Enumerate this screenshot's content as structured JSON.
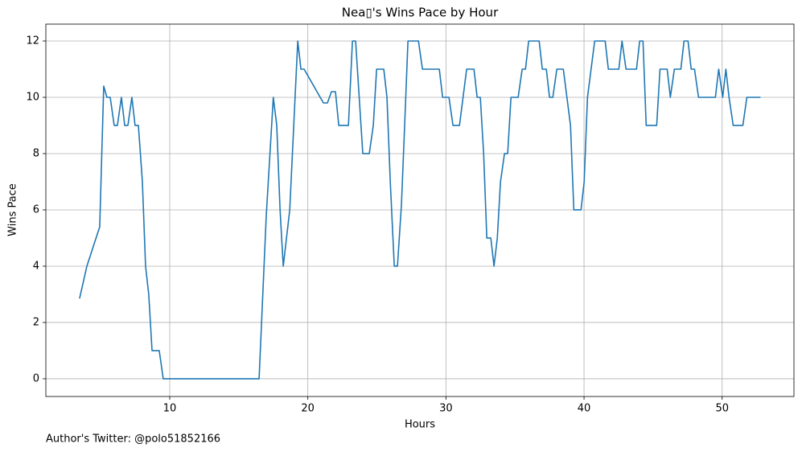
{
  "chart_data": {
    "type": "line",
    "title": "Nea▯'s Wins Pace by Hour",
    "x_label": "Hours",
    "y_label": "Wins Pace",
    "annotation": "Author's Twitter: @polo51852166",
    "x": [
      3.47,
      4.0,
      4.93,
      5.22,
      5.45,
      5.69,
      5.98,
      6.21,
      6.5,
      6.74,
      6.97,
      7.26,
      7.49,
      7.73,
      8.02,
      8.25,
      8.48,
      8.72,
      9.24,
      9.53,
      16.47,
      16.99,
      17.5,
      17.75,
      17.99,
      18.22,
      18.69,
      19.27,
      19.5,
      19.73,
      21.13,
      21.42,
      21.71,
      22.0,
      22.24,
      22.94,
      23.23,
      23.46,
      23.98,
      24.45,
      24.74,
      24.98,
      25.5,
      25.73,
      25.97,
      26.26,
      26.49,
      26.78,
      27.01,
      27.25,
      28.01,
      28.3,
      29.52,
      29.76,
      30.22,
      30.51,
      30.98,
      31.5,
      32.03,
      32.26,
      32.49,
      32.73,
      32.96,
      33.25,
      33.48,
      33.72,
      33.95,
      34.24,
      34.47,
      34.71,
      35.23,
      35.52,
      35.76,
      35.99,
      36.75,
      36.98,
      37.27,
      37.5,
      37.74,
      38.03,
      38.5,
      39.02,
      39.26,
      39.78,
      40.01,
      40.25,
      40.77,
      41.53,
      41.76,
      42.52,
      42.75,
      43.04,
      43.8,
      44.03,
      44.27,
      44.5,
      45.26,
      45.5,
      46.02,
      46.25,
      46.54,
      47.01,
      47.24,
      47.53,
      47.76,
      48.0,
      48.29,
      49.51,
      49.75,
      50.04,
      50.27,
      50.5,
      50.8,
      51.5,
      51.79,
      52.78
    ],
    "series": [
      {
        "name": "Wins Pace",
        "color": "#1f77b4",
        "values": [
          2.85,
          4,
          5.4,
          10.4,
          10,
          10,
          9,
          9,
          10,
          9,
          9,
          10,
          9,
          9,
          7,
          4,
          3,
          1,
          1,
          0,
          0,
          5.8,
          10,
          9,
          6,
          4,
          6,
          12,
          11,
          11,
          9.8,
          9.8,
          10.2,
          10.2,
          9,
          9,
          12,
          12,
          8,
          8,
          9,
          11,
          11,
          10,
          7,
          4,
          4,
          6.2,
          9,
          12,
          12,
          11,
          11,
          10,
          10,
          9,
          9,
          11,
          11,
          10,
          10,
          8,
          5,
          5,
          4,
          5,
          7,
          8,
          8,
          10,
          10,
          11,
          11,
          12,
          12,
          11,
          11,
          10,
          10,
          11,
          11,
          9,
          6,
          6,
          7,
          10,
          12,
          12,
          11,
          11,
          12,
          11,
          11,
          12,
          12,
          9,
          9,
          11,
          11,
          10,
          11,
          11,
          12,
          12,
          11,
          11,
          10,
          10,
          11,
          10,
          11,
          10,
          9,
          9,
          10,
          10
        ]
      }
    ],
    "xlim": [
      1.03,
      55.2
    ],
    "ylim": [
      -0.63,
      12.6
    ],
    "xticks": [
      10,
      20,
      30,
      40,
      50
    ],
    "yticks": [
      0,
      2,
      4,
      6,
      8,
      10,
      12
    ],
    "grid": true
  }
}
